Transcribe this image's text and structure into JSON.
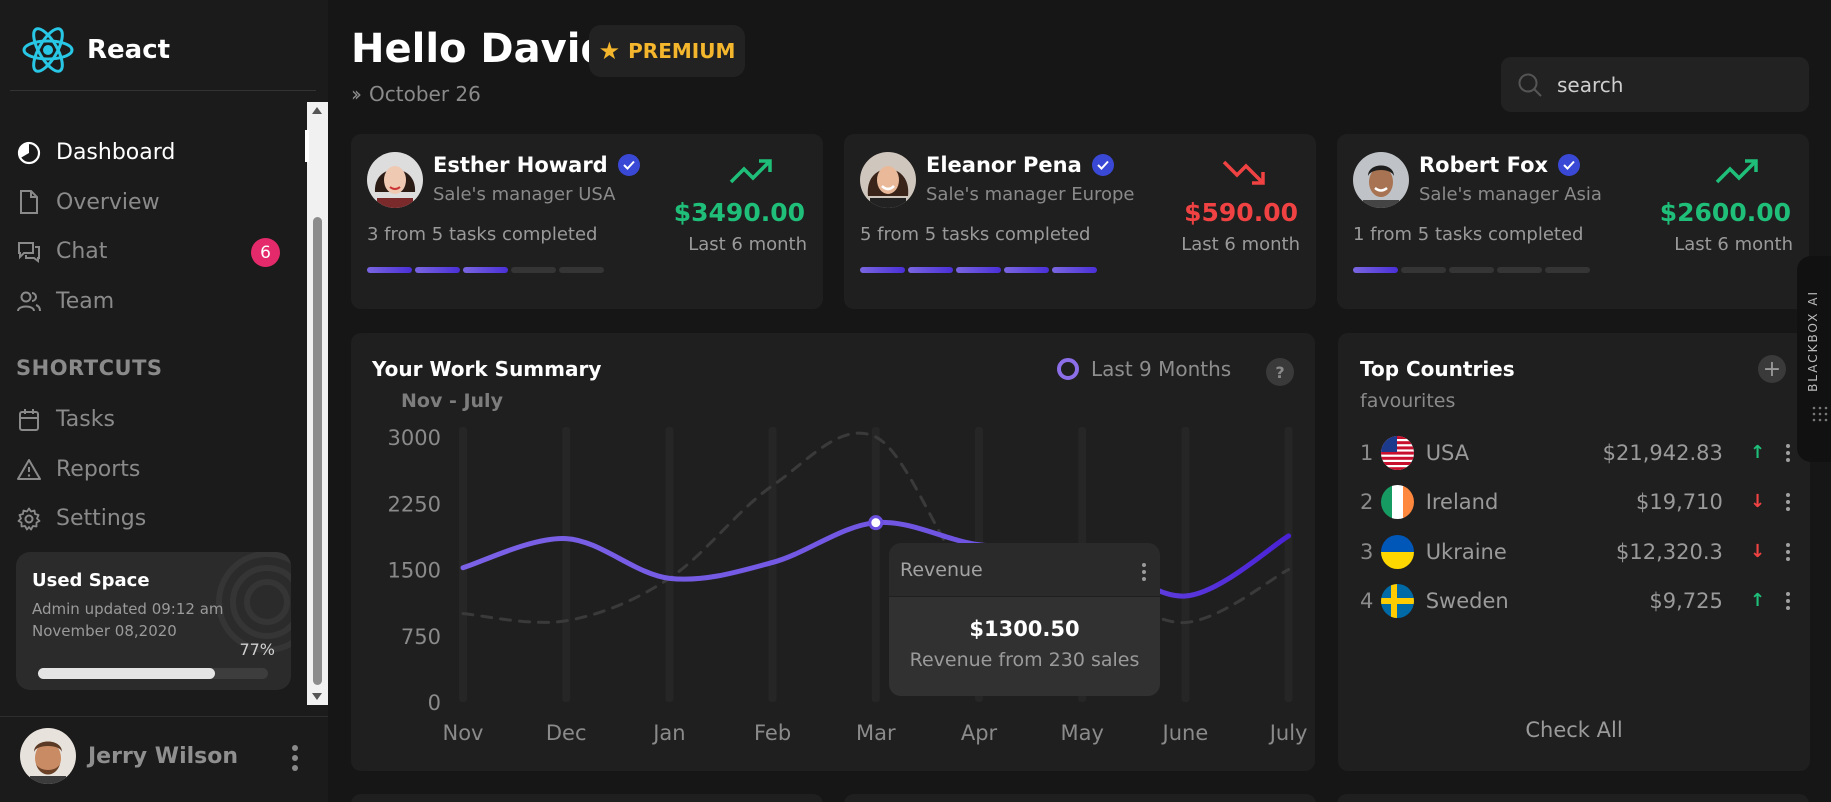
{
  "brand": {
    "name": "React"
  },
  "nav": [
    {
      "label": "Dashboard",
      "icon": "dashboard-icon",
      "active": true
    },
    {
      "label": "Overview",
      "icon": "document-icon"
    },
    {
      "label": "Chat",
      "icon": "chat-icon",
      "badge": "6"
    },
    {
      "label": "Team",
      "icon": "team-icon"
    }
  ],
  "shortcuts": {
    "title": "SHORTCUTS",
    "items": [
      {
        "label": "Tasks",
        "icon": "calendar-icon"
      },
      {
        "label": "Reports",
        "icon": "warning-icon"
      },
      {
        "label": "Settings",
        "icon": "gear-icon"
      }
    ]
  },
  "used_space": {
    "title": "Used Space",
    "subtitle": "Admin updated 09:12 am November 08,2020",
    "percent_label": "77%",
    "percent": 77
  },
  "user": {
    "name": "Jerry Wilson"
  },
  "header": {
    "greeting": "Hello David",
    "premium": "PREMIUM",
    "date": "October 26",
    "search_placeholder": "search"
  },
  "managers": [
    {
      "name": "Esther Howard",
      "role": "Sale's manager USA",
      "tasks": "3 from 5 tasks completed",
      "done": 3,
      "total": 5,
      "amount": "$3490.00",
      "period": "Last 6 month",
      "trend": "up"
    },
    {
      "name": "Eleanor Pena",
      "role": "Sale's manager Europe",
      "tasks": "5 from 5 tasks completed",
      "done": 5,
      "total": 5,
      "amount": "$590.00",
      "period": "Last 6 month",
      "trend": "down"
    },
    {
      "name": "Robert Fox",
      "role": "Sale's manager Asia",
      "tasks": "1 from 5 tasks completed",
      "done": 1,
      "total": 5,
      "amount": "$2600.00",
      "period": "Last 6 month",
      "trend": "up"
    }
  ],
  "work_summary": {
    "title": "Your Work Summary",
    "range": "Nov - July",
    "filter": "Last 9 Months",
    "help": "?"
  },
  "chart_data": {
    "type": "line",
    "categories": [
      "Nov",
      "Dec",
      "Jan",
      "Feb",
      "Mar",
      "Apr",
      "May",
      "June",
      "July"
    ],
    "y_ticks": [
      0,
      750,
      1500,
      2250,
      3000
    ],
    "ylim": [
      0,
      3000
    ],
    "series": [
      {
        "values": [
          1520,
          1850,
          1400,
          1580,
          2030,
          1780,
          1720,
          1200,
          1880
        ],
        "color": "#7b61e6",
        "style": "solid"
      },
      {
        "values": [
          1000,
          920,
          1400,
          2450,
          3000,
          1300,
          1350,
          900,
          1500
        ],
        "color": "#3a3a3a",
        "style": "dashed"
      }
    ],
    "highlight_index": 4,
    "tooltip": {
      "title": "Revenue",
      "value": "$1300.50",
      "subtitle": "Revenue from 230 sales"
    }
  },
  "countries": {
    "title": "Top Countries",
    "subtitle": "favourites",
    "plus": "+",
    "items": [
      {
        "rank": "1",
        "name": "USA",
        "value": "$21,942.83",
        "trend": "up",
        "flag": "usa-flag-icon"
      },
      {
        "rank": "2",
        "name": "Ireland",
        "value": "$19,710",
        "trend": "down",
        "flag": "ireland-flag-icon"
      },
      {
        "rank": "3",
        "name": "Ukraine",
        "value": "$12,320.3",
        "trend": "down",
        "flag": "ukraine-flag-icon"
      },
      {
        "rank": "4",
        "name": "Sweden",
        "value": "$9,725",
        "trend": "up",
        "flag": "sweden-flag-icon"
      }
    ],
    "check_all": "Check All"
  },
  "blackbox": {
    "label": "BLACKBOX AI"
  },
  "colors": {
    "accent": "#7b61e6",
    "positive": "#1fbf7a",
    "negative": "#f04242",
    "premium": "#f3b62c",
    "badge": "#e42a6a"
  }
}
